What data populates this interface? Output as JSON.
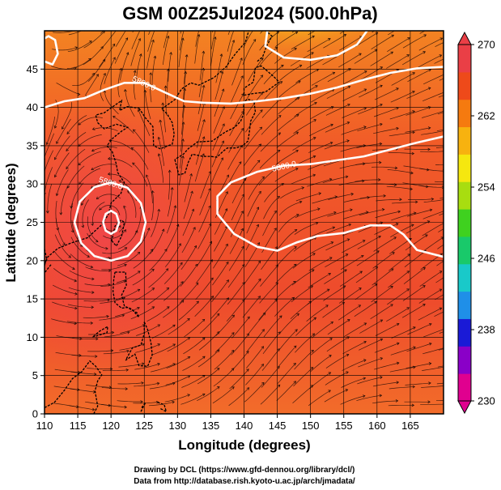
{
  "title": "GSM 00Z25Jul2024 (500.0hPa)",
  "xlabel": "Longitude (degrees)",
  "ylabel": "Latitude  (degrees)",
  "x_ticks": [
    110,
    115,
    120,
    125,
    130,
    135,
    140,
    145,
    150,
    155,
    160,
    165
  ],
  "y_ticks": [
    0,
    5,
    10,
    15,
    20,
    25,
    30,
    35,
    40,
    45
  ],
  "xlim": [
    110,
    170
  ],
  "ylim": [
    0,
    50
  ],
  "colorbar": {
    "labels": [
      270,
      262,
      254,
      246,
      238,
      230
    ],
    "range": [
      230,
      270
    ],
    "colors": [
      "#e0008f",
      "#8a00c8",
      "#1a1ad6",
      "#1f8fe8",
      "#19c9c9",
      "#19c96a",
      "#3fd11f",
      "#a8dd10",
      "#f5e70f",
      "#f7b20f",
      "#f57a0f",
      "#ee4a1a",
      "#ea3f46"
    ]
  },
  "contours": [
    {
      "label": "5800.0",
      "points": [
        [
          110,
          40
        ],
        [
          113,
          40.8
        ],
        [
          116,
          41.2
        ],
        [
          119,
          42.3
        ],
        [
          122,
          43.2
        ],
        [
          125,
          43.2
        ],
        [
          128,
          42
        ],
        [
          131,
          40.8
        ],
        [
          134,
          40.6
        ],
        [
          138,
          40.5
        ],
        [
          142,
          40.8
        ],
        [
          146,
          41.2
        ],
        [
          150,
          41.8
        ],
        [
          154,
          42.6
        ],
        [
          158,
          43.6
        ],
        [
          162,
          44.5
        ],
        [
          166,
          45.1
        ],
        [
          170,
          45.3
        ]
      ]
    },
    {
      "label": "5800.0",
      "points": [
        [
          170,
          36.2
        ],
        [
          166,
          35.4
        ],
        [
          162,
          34.5
        ],
        [
          158,
          33.6
        ],
        [
          154,
          33.1
        ],
        [
          150,
          32.6
        ],
        [
          146,
          32.4
        ],
        [
          142,
          31.6
        ],
        [
          138,
          30.2
        ],
        [
          136,
          28.4
        ],
        [
          136,
          26.1
        ],
        [
          138.5,
          23.5
        ],
        [
          142,
          21.8
        ],
        [
          145,
          21.3
        ],
        [
          148,
          22.4
        ],
        [
          151,
          23.2
        ],
        [
          155,
          23.6
        ],
        [
          159,
          24.6
        ],
        [
          162,
          24.6
        ],
        [
          164,
          23.4
        ],
        [
          166,
          21.4
        ],
        [
          170,
          20.5
        ]
      ]
    },
    {
      "label": "5800.0",
      "points": [
        [
          114.5,
          25
        ],
        [
          115.3,
          27.7
        ],
        [
          117.5,
          29.6
        ],
        [
          120,
          30.2
        ],
        [
          122.5,
          29.5
        ],
        [
          124.5,
          27.5
        ],
        [
          125.2,
          25
        ],
        [
          124.5,
          22.5
        ],
        [
          122.5,
          20.6
        ],
        [
          120,
          20
        ],
        [
          117.5,
          20.6
        ],
        [
          115.5,
          22.3
        ],
        [
          114.5,
          25
        ]
      ]
    },
    {
      "label": "",
      "points": [
        [
          118.8,
          25
        ],
        [
          119.2,
          26.1
        ],
        [
          120,
          26.5
        ],
        [
          120.8,
          26.1
        ],
        [
          121.2,
          25
        ],
        [
          120.8,
          23.9
        ],
        [
          120,
          23.5
        ],
        [
          119.2,
          23.9
        ],
        [
          118.8,
          25
        ]
      ]
    },
    {
      "label": "",
      "points": [
        [
          143.5,
          50
        ],
        [
          143.2,
          48
        ],
        [
          146,
          46.5
        ],
        [
          150,
          46.2
        ],
        [
          154,
          46.8
        ],
        [
          157,
          48.2
        ],
        [
          158.5,
          50
        ]
      ]
    },
    {
      "label": "",
      "points": [
        [
          110,
          46
        ],
        [
          111.2,
          45.6
        ],
        [
          112,
          47
        ],
        [
          111.6,
          48.8
        ],
        [
          110.6,
          49.3
        ],
        [
          110,
          49
        ]
      ]
    }
  ],
  "credits": [
    "Drawing by DCL (https://www.gfd-dennou.org/library/dcl/)",
    "Data from http://database.rish.kyoto-u.ac.jp/arch/jmadata/"
  ]
}
